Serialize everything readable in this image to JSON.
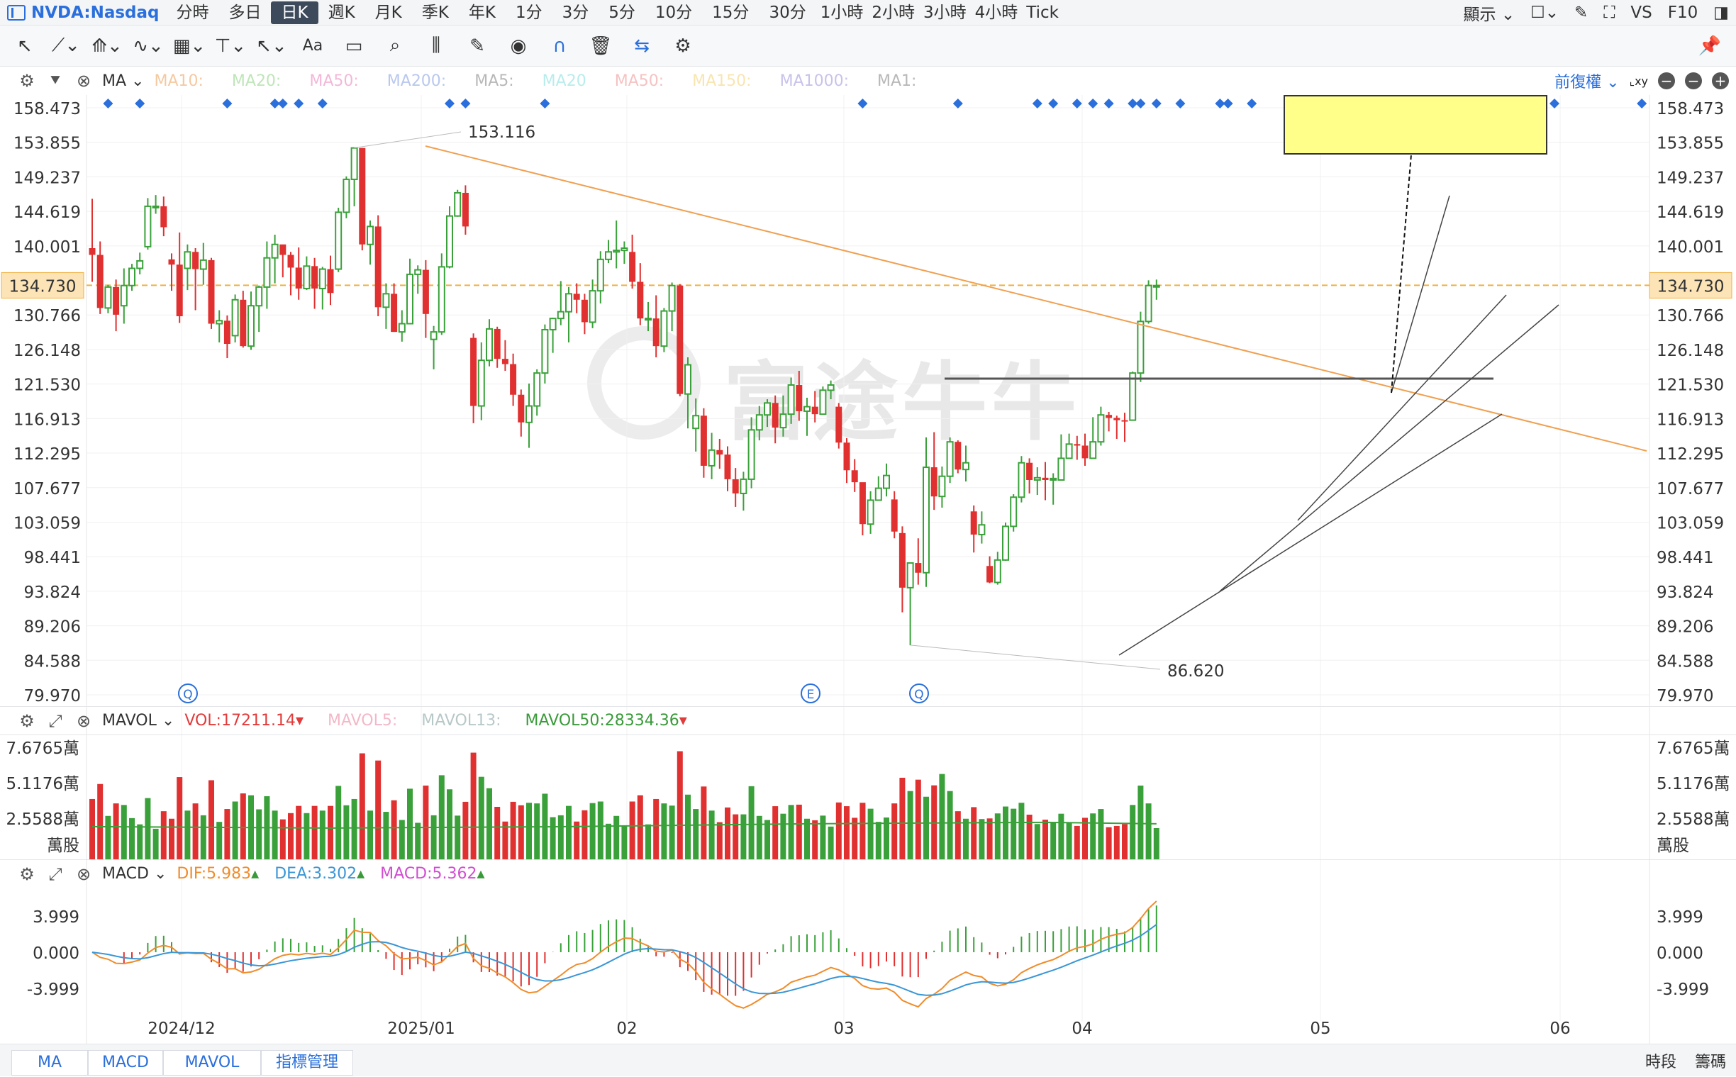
{
  "toolbar": {
    "symbol": "NVDA:Nasdaq",
    "timeframes": [
      "分時",
      "多日",
      "日K",
      "週K",
      "月K",
      "季K",
      "年K",
      "1分",
      "3分",
      "5分",
      "10分",
      "15分",
      "30分",
      "1小時",
      "2小時",
      "3小時",
      "4小時",
      "Tick"
    ],
    "active_timeframe": "日K",
    "display_label": "顯示",
    "vs_label": "VS",
    "f10_label": "F10"
  },
  "tools": [
    "cursor-icon",
    "line-icon",
    "polyline-icon",
    "wave-icon",
    "fib-icon",
    "measure-icon",
    "arrow-icon",
    "Aa",
    "comment-icon",
    "zoom-icon",
    "pattern-icon",
    "pen-icon",
    "eye-icon",
    "magnet-icon",
    "trash-icon",
    "sync-icon",
    "gear-icon",
    "pin-icon"
  ],
  "main_indicator": {
    "name": "MA",
    "items": [
      {
        "label": "MA10:",
        "color": "#f5c9a0"
      },
      {
        "label": "MA20:",
        "color": "#bfe6b8"
      },
      {
        "label": "MA50:",
        "color": "#f3b8d8"
      },
      {
        "label": "MA200:",
        "color": "#b9c8ee"
      },
      {
        "label": "MA5:",
        "color": "#b8b8b8"
      },
      {
        "label": "MA20",
        "color": "#b9ecec"
      },
      {
        "label": "MA50:",
        "color": "#f6c2c2"
      },
      {
        "label": "MA150:",
        "color": "#f8e5b0"
      },
      {
        "label": "MA1000:",
        "color": "#c9c2ea"
      },
      {
        "label": "MA1:",
        "color": "#b8b8b8"
      }
    ],
    "adjust_label": "前復權"
  },
  "vol_indicator": {
    "name": "MAVOL",
    "vol_label": "VOL:17211.14",
    "mavol5_label": "MAVOL5:",
    "mavol13_label": "MAVOL13:",
    "mavol50_label": "MAVOL50:28334.36"
  },
  "macd_indicator": {
    "name": "MACD",
    "dif_label": "DIF:5.983",
    "dea_label": "DEA:3.302",
    "macd_label": "MACD:5.362"
  },
  "bottom_tabs": [
    "MA",
    "MACD",
    "MAVOL",
    "指標管理"
  ],
  "bottom_right": [
    "時段",
    "籌碼"
  ],
  "chart_data": {
    "type": "candlestick",
    "price_axis": {
      "ticks": [
        "158.473",
        "153.855",
        "149.237",
        "144.619",
        "140.001",
        "134.730",
        "130.766",
        "126.148",
        "121.530",
        "116.913",
        "112.295",
        "107.677",
        "103.059",
        "98.441",
        "93.824",
        "89.206",
        "84.588",
        "79.970"
      ],
      "range": [
        79.97,
        158.473
      ]
    },
    "current_price": "134.730",
    "annotations": {
      "high": "153.116",
      "low": "86.620"
    },
    "event_markers": [
      "Q",
      "E",
      "Q"
    ],
    "x_labels": [
      "2024/12",
      "2025/01",
      "02",
      "03",
      "04",
      "05",
      "06"
    ],
    "candles": [
      [
        139.7,
        138.8,
        146.3,
        135.2
      ],
      [
        138.8,
        131.7,
        140.6,
        130.9
      ],
      [
        131.7,
        134.5,
        134.8,
        131.0
      ],
      [
        134.5,
        130.8,
        135.5,
        128.6
      ],
      [
        132.0,
        134.7,
        137.0,
        129.6
      ],
      [
        134.7,
        137.0,
        137.6,
        134.0
      ],
      [
        137.0,
        138.0,
        139.1,
        136.2
      ],
      [
        139.9,
        145.3,
        146.4,
        139.5
      ],
      [
        145.3,
        145.3,
        146.8,
        144.3
      ],
      [
        145.3,
        142.5,
        146.6,
        141.3
      ],
      [
        138.2,
        137.5,
        139.0,
        134.0
      ],
      [
        137.5,
        130.6,
        141.8,
        129.7
      ],
      [
        137.0,
        139.2,
        140.2,
        134.1
      ],
      [
        139.2,
        136.9,
        139.7,
        131.4
      ],
      [
        136.9,
        138.1,
        140.4,
        134.8
      ],
      [
        138.1,
        129.6,
        138.4,
        128.9
      ],
      [
        129.6,
        130.0,
        131.4,
        127.1
      ],
      [
        130.0,
        126.9,
        130.7,
        125.0
      ],
      [
        128.0,
        132.8,
        133.5,
        127.1
      ],
      [
        132.8,
        126.6,
        134.0,
        126.4
      ],
      [
        126.6,
        132.0,
        133.9,
        126.1
      ],
      [
        132.0,
        134.5,
        134.7,
        128.5
      ],
      [
        134.5,
        138.4,
        140.6,
        131.6
      ],
      [
        138.4,
        140.2,
        141.5,
        135.0
      ],
      [
        140.2,
        138.8,
        139.9,
        135.8
      ],
      [
        138.8,
        137.1,
        139.2,
        133.4
      ],
      [
        137.1,
        134.3,
        139.8,
        132.8
      ],
      [
        134.3,
        137.3,
        138.6,
        134.1
      ],
      [
        137.3,
        134.3,
        138.4,
        131.6
      ],
      [
        134.3,
        136.9,
        137.2,
        131.5
      ],
      [
        136.9,
        133.7,
        138.7,
        132.1
      ],
      [
        136.9,
        144.5,
        145.1,
        136.5
      ],
      [
        144.5,
        148.9,
        149.3,
        143.7
      ],
      [
        148.9,
        153.1,
        153.1,
        145.3
      ],
      [
        153.1,
        140.2,
        153.1,
        139.4
      ],
      [
        140.2,
        142.6,
        143.4,
        137.5
      ],
      [
        142.6,
        131.8,
        144.1,
        130.6
      ],
      [
        131.8,
        133.6,
        135.0,
        128.9
      ],
      [
        133.6,
        128.5,
        135.0,
        128.5
      ],
      [
        128.5,
        129.6,
        131.4,
        127.2
      ],
      [
        129.6,
        136.2,
        138.3,
        129.6
      ],
      [
        136.2,
        136.8,
        137.4,
        133.6
      ],
      [
        136.8,
        130.9,
        138.1,
        127.7
      ],
      [
        127.5,
        128.5,
        129.3,
        123.5
      ],
      [
        128.5,
        137.2,
        139.0,
        128.1
      ],
      [
        137.2,
        144.0,
        145.3,
        137.0
      ],
      [
        144.0,
        147.1,
        147.5,
        143.9
      ],
      [
        147.1,
        142.6,
        148.1,
        141.5
      ],
      [
        127.7,
        118.6,
        128.3,
        116.3
      ],
      [
        118.6,
        124.7,
        127.1,
        116.7
      ],
      [
        124.7,
        128.9,
        130.2,
        123.9
      ],
      [
        128.9,
        124.9,
        129.2,
        123.7
      ],
      [
        124.9,
        124.2,
        127.4,
        123.3
      ],
      [
        124.2,
        120.1,
        125.6,
        118.6
      ],
      [
        120.1,
        116.4,
        120.8,
        114.5
      ],
      [
        116.4,
        118.6,
        121.6,
        113.0
      ],
      [
        118.6,
        123.0,
        123.5,
        117.3
      ],
      [
        123.0,
        128.8,
        129.5,
        121.6
      ],
      [
        128.8,
        130.3,
        130.4,
        125.7
      ],
      [
        130.3,
        131.2,
        135.3,
        129.4
      ],
      [
        131.2,
        133.6,
        134.5,
        127.1
      ],
      [
        133.6,
        132.8,
        135.0,
        131.0
      ],
      [
        132.8,
        129.8,
        133.6,
        128.2
      ],
      [
        129.8,
        134.0,
        135.5,
        129.0
      ],
      [
        134.0,
        138.2,
        139.3,
        132.3
      ],
      [
        138.2,
        139.2,
        140.8,
        137.7
      ],
      [
        139.2,
        139.4,
        143.4,
        137.0
      ],
      [
        139.4,
        139.7,
        140.6,
        137.6
      ],
      [
        139.2,
        135.2,
        141.5,
        134.3
      ],
      [
        135.2,
        130.3,
        137.7,
        129.4
      ],
      [
        130.3,
        130.3,
        132.5,
        128.6
      ],
      [
        130.3,
        126.6,
        133.4,
        125.1
      ],
      [
        126.6,
        131.3,
        131.7,
        125.8
      ],
      [
        131.3,
        134.7,
        135.1,
        128.6
      ],
      [
        134.7,
        120.2,
        134.9,
        119.9
      ],
      [
        120.2,
        124.1,
        125.1,
        115.6
      ],
      [
        115.6,
        117.3,
        119.6,
        112.5
      ],
      [
        117.3,
        110.6,
        118.3,
        109.0
      ],
      [
        110.6,
        112.7,
        115.0,
        108.8
      ],
      [
        112.7,
        112.1,
        114.2,
        110.2
      ],
      [
        112.1,
        108.8,
        113.2,
        107.2
      ],
      [
        108.8,
        106.9,
        110.3,
        105.1
      ],
      [
        106.9,
        108.8,
        109.8,
        104.6
      ],
      [
        108.8,
        115.4,
        117.1,
        107.6
      ],
      [
        115.4,
        117.4,
        118.6,
        114.0
      ],
      [
        117.4,
        119.0,
        119.5,
        115.8
      ],
      [
        119.0,
        115.7,
        120.0,
        113.6
      ],
      [
        115.7,
        117.5,
        120.0,
        114.5
      ],
      [
        117.5,
        121.4,
        122.4,
        116.2
      ],
      [
        121.4,
        117.9,
        123.3,
        116.6
      ],
      [
        117.9,
        118.5,
        119.7,
        114.6
      ],
      [
        118.5,
        117.5,
        120.6,
        116.4
      ],
      [
        117.5,
        120.7,
        121.2,
        117.7
      ],
      [
        120.7,
        121.4,
        122.0,
        119.5
      ],
      [
        118.5,
        113.7,
        119.0,
        112.9
      ],
      [
        113.7,
        110.0,
        114.3,
        108.3
      ],
      [
        110.0,
        108.4,
        111.5,
        107.1
      ],
      [
        108.4,
        102.8,
        106.5,
        101.3
      ],
      [
        102.8,
        106.0,
        107.2,
        101.5
      ],
      [
        106.0,
        107.6,
        109.2,
        106.1
      ],
      [
        107.6,
        109.3,
        110.9,
        106.5
      ],
      [
        106.1,
        101.8,
        107.2,
        100.9
      ],
      [
        101.6,
        94.3,
        102.5,
        91.0
      ],
      [
        94.3,
        97.6,
        97.0,
        86.6
      ],
      [
        97.6,
        96.3,
        100.9,
        94.7
      ],
      [
        96.3,
        110.4,
        114.4,
        94.4
      ],
      [
        110.4,
        106.5,
        115.1,
        104.7
      ],
      [
        106.5,
        109.2,
        110.5,
        105.0
      ],
      [
        109.2,
        113.8,
        114.4,
        108.3
      ],
      [
        113.8,
        110.1,
        114.0,
        109.6
      ],
      [
        110.1,
        111.0,
        113.3,
        108.5
      ],
      [
        104.5,
        101.4,
        105.3,
        99.0
      ],
      [
        101.4,
        102.7,
        104.5,
        100.2
      ],
      [
        97.2,
        95.0,
        98.5,
        94.9
      ],
      [
        95.0,
        98.0,
        99.1,
        94.7
      ],
      [
        98.0,
        102.5,
        103.0,
        97.9
      ],
      [
        102.5,
        106.4,
        106.8,
        101.8
      ],
      [
        106.4,
        111.0,
        111.9,
        105.7
      ],
      [
        111.0,
        108.7,
        111.6,
        106.9
      ],
      [
        108.7,
        109.0,
        110.4,
        106.7
      ],
      [
        109.0,
        108.7,
        111.1,
        106.0
      ],
      [
        108.7,
        108.9,
        109.6,
        105.4
      ],
      [
        108.7,
        111.6,
        114.8,
        110.4
      ],
      [
        111.6,
        113.5,
        114.9,
        112.3
      ],
      [
        113.5,
        113.3,
        114.6,
        111.4
      ],
      [
        113.3,
        111.6,
        114.9,
        110.6
      ],
      [
        111.6,
        113.8,
        117.1,
        111.9
      ],
      [
        113.8,
        117.4,
        118.5,
        113.3
      ],
      [
        117.4,
        117.0,
        117.8,
        115.2
      ],
      [
        117.0,
        116.7,
        117.3,
        114.2
      ],
      [
        116.7,
        116.6,
        117.7,
        113.8
      ],
      [
        116.7,
        123.0,
        123.2,
        119.4
      ],
      [
        123.0,
        129.9,
        131.2,
        121.8
      ],
      [
        129.9,
        134.7,
        135.4,
        129.6
      ],
      [
        134.7,
        134.7,
        135.5,
        132.8
      ]
    ],
    "volume": {
      "ticks": [
        "7.6765萬",
        "5.1176萬",
        "2.5588萬",
        "萬股"
      ],
      "max": 7.6765
    },
    "macd_axis": {
      "ticks": [
        "3.999",
        "0.000",
        "-3.999"
      ]
    }
  }
}
